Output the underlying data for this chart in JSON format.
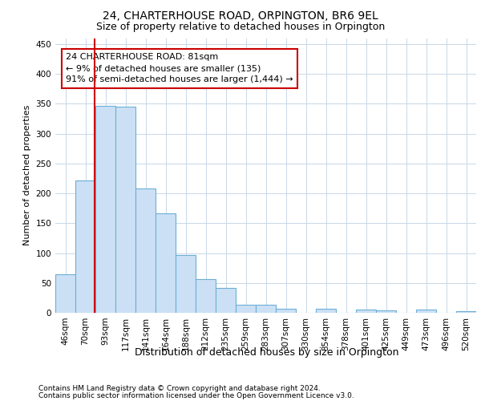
{
  "title": "24, CHARTERHOUSE ROAD, ORPINGTON, BR6 9EL",
  "subtitle": "Size of property relative to detached houses in Orpington",
  "xlabel": "Distribution of detached houses by size in Orpington",
  "ylabel": "Number of detached properties",
  "categories": [
    "46sqm",
    "70sqm",
    "93sqm",
    "117sqm",
    "141sqm",
    "164sqm",
    "188sqm",
    "212sqm",
    "235sqm",
    "259sqm",
    "283sqm",
    "307sqm",
    "330sqm",
    "354sqm",
    "378sqm",
    "401sqm",
    "425sqm",
    "449sqm",
    "473sqm",
    "496sqm",
    "520sqm"
  ],
  "values": [
    65,
    221,
    346,
    345,
    208,
    166,
    97,
    56,
    42,
    13,
    13,
    7,
    0,
    7,
    0,
    5,
    4,
    0,
    5,
    0,
    3
  ],
  "bar_fill_color": "#cce0f5",
  "bar_edge_color": "#6baed6",
  "background_color": "#ffffff",
  "grid_color": "#c8d8e8",
  "annotation_box_text": [
    "24 CHARTERHOUSE ROAD: 81sqm",
    "← 9% of detached houses are smaller (135)",
    "91% of semi-detached houses are larger (1,444) →"
  ],
  "annotation_box_color": "#ffffff",
  "annotation_box_edge_color": "#cc0000",
  "annotation_line_color": "#cc0000",
  "ylim": [
    0,
    460
  ],
  "yticks": [
    0,
    50,
    100,
    150,
    200,
    250,
    300,
    350,
    400,
    450
  ],
  "footer_line1": "Contains HM Land Registry data © Crown copyright and database right 2024.",
  "footer_line2": "Contains public sector information licensed under the Open Government Licence v3.0.",
  "title_fontsize": 10,
  "subtitle_fontsize": 9,
  "tick_fontsize": 7.5,
  "ylabel_fontsize": 8,
  "xlabel_fontsize": 9,
  "annotation_fontsize": 8,
  "footer_fontsize": 6.5
}
